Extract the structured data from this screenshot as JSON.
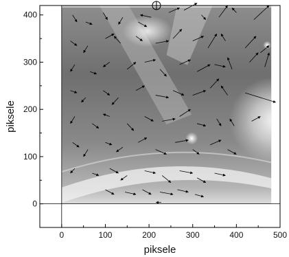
{
  "chart_data": {
    "type": "vector-field",
    "title": "",
    "xlabel": "piksele",
    "ylabel": "piksele",
    "xlim": [
      -50,
      500
    ],
    "ylim": [
      -50,
      420
    ],
    "xticks": [
      0,
      100,
      200,
      300,
      400,
      500
    ],
    "yticks": [
      0,
      100,
      200,
      300,
      400
    ],
    "grid": false,
    "legend": "none",
    "image_extent": {
      "x": [
        0,
        480
      ],
      "y": [
        0,
        420
      ]
    },
    "reference_lines": {
      "x": 0,
      "y": 0
    },
    "marker": {
      "x": 217,
      "y": 420,
      "symbol": "circle-plus"
    },
    "vectors": [
      {
        "x": 25,
        "y": 400,
        "dx": 10,
        "dy": -15
      },
      {
        "x": 55,
        "y": 385,
        "dx": 15,
        "dy": -5
      },
      {
        "x": 95,
        "y": 405,
        "dx": 10,
        "dy": -15
      },
      {
        "x": 140,
        "y": 395,
        "dx": -10,
        "dy": -15
      },
      {
        "x": 175,
        "y": 385,
        "dx": 20,
        "dy": -10
      },
      {
        "x": 205,
        "y": 395,
        "dx": -25,
        "dy": 5
      },
      {
        "x": 245,
        "y": 405,
        "dx": 25,
        "dy": 10
      },
      {
        "x": 280,
        "y": 410,
        "dx": 30,
        "dy": 15
      },
      {
        "x": 320,
        "y": 400,
        "dx": 10,
        "dy": -10
      },
      {
        "x": 360,
        "y": 395,
        "dx": 20,
        "dy": 25
      },
      {
        "x": 400,
        "y": 405,
        "dx": -10,
        "dy": 10
      },
      {
        "x": 440,
        "y": 390,
        "dx": 35,
        "dy": 30
      },
      {
        "x": 20,
        "y": 345,
        "dx": 15,
        "dy": -10
      },
      {
        "x": 60,
        "y": 335,
        "dx": -10,
        "dy": -15
      },
      {
        "x": 100,
        "y": 350,
        "dx": 20,
        "dy": 10
      },
      {
        "x": 135,
        "y": 340,
        "dx": -15,
        "dy": 15
      },
      {
        "x": 170,
        "y": 355,
        "dx": 15,
        "dy": -10
      },
      {
        "x": 215,
        "y": 340,
        "dx": 30,
        "dy": 5
      },
      {
        "x": 255,
        "y": 350,
        "dx": 20,
        "dy": 20
      },
      {
        "x": 300,
        "y": 345,
        "dx": 25,
        "dy": 10
      },
      {
        "x": 335,
        "y": 330,
        "dx": 20,
        "dy": 30
      },
      {
        "x": 375,
        "y": 345,
        "dx": -10,
        "dy": 15
      },
      {
        "x": 420,
        "y": 330,
        "dx": 25,
        "dy": 25
      },
      {
        "x": 455,
        "y": 320,
        "dx": 20,
        "dy": 15
      },
      {
        "x": 30,
        "y": 295,
        "dx": -10,
        "dy": -15
      },
      {
        "x": 65,
        "y": 280,
        "dx": 15,
        "dy": -5
      },
      {
        "x": 110,
        "y": 300,
        "dx": -15,
        "dy": -10
      },
      {
        "x": 150,
        "y": 285,
        "dx": 20,
        "dy": 15
      },
      {
        "x": 190,
        "y": 300,
        "dx": 25,
        "dy": 5
      },
      {
        "x": 225,
        "y": 285,
        "dx": 15,
        "dy": -15
      },
      {
        "x": 270,
        "y": 295,
        "dx": 25,
        "dy": 10
      },
      {
        "x": 310,
        "y": 280,
        "dx": 30,
        "dy": 15
      },
      {
        "x": 350,
        "y": 295,
        "dx": 25,
        "dy": -5
      },
      {
        "x": 390,
        "y": 285,
        "dx": -10,
        "dy": 25
      },
      {
        "x": 430,
        "y": 300,
        "dx": 20,
        "dy": 20
      },
      {
        "x": 465,
        "y": 290,
        "dx": 10,
        "dy": 30
      },
      {
        "x": 20,
        "y": 240,
        "dx": 15,
        "dy": -5
      },
      {
        "x": 55,
        "y": 225,
        "dx": -10,
        "dy": -10
      },
      {
        "x": 95,
        "y": 240,
        "dx": 15,
        "dy": -10
      },
      {
        "x": 130,
        "y": 225,
        "dx": -15,
        "dy": -15
      },
      {
        "x": 170,
        "y": 240,
        "dx": 20,
        "dy": 10
      },
      {
        "x": 215,
        "y": 230,
        "dx": 30,
        "dy": -5
      },
      {
        "x": 255,
        "y": 240,
        "dx": 25,
        "dy": -10
      },
      {
        "x": 300,
        "y": 230,
        "dx": 30,
        "dy": 10
      },
      {
        "x": 340,
        "y": 245,
        "dx": 20,
        "dy": 20
      },
      {
        "x": 380,
        "y": 230,
        "dx": -15,
        "dy": 20
      },
      {
        "x": 420,
        "y": 235,
        "dx": 70,
        "dy": -20
      },
      {
        "x": 30,
        "y": 185,
        "dx": -10,
        "dy": -15
      },
      {
        "x": 70,
        "y": 170,
        "dx": 15,
        "dy": -10
      },
      {
        "x": 110,
        "y": 185,
        "dx": -15,
        "dy": 5
      },
      {
        "x": 150,
        "y": 170,
        "dx": 15,
        "dy": -15
      },
      {
        "x": 190,
        "y": 185,
        "dx": 20,
        "dy": -10
      },
      {
        "x": 230,
        "y": 175,
        "dx": 30,
        "dy": 5
      },
      {
        "x": 270,
        "y": 185,
        "dx": 25,
        "dy": 15
      },
      {
        "x": 310,
        "y": 170,
        "dx": 20,
        "dy": -5
      },
      {
        "x": 355,
        "y": 180,
        "dx": 10,
        "dy": -15
      },
      {
        "x": 395,
        "y": 165,
        "dx": -10,
        "dy": 15
      },
      {
        "x": 435,
        "y": 175,
        "dx": 20,
        "dy": 10
      },
      {
        "x": 25,
        "y": 130,
        "dx": 15,
        "dy": -10
      },
      {
        "x": 60,
        "y": 115,
        "dx": -10,
        "dy": -15
      },
      {
        "x": 100,
        "y": 130,
        "dx": 15,
        "dy": -5
      },
      {
        "x": 140,
        "y": 120,
        "dx": -15,
        "dy": -10
      },
      {
        "x": 175,
        "y": 130,
        "dx": 20,
        "dy": 10
      },
      {
        "x": 215,
        "y": 115,
        "dx": 25,
        "dy": -10
      },
      {
        "x": 260,
        "y": 130,
        "dx": 30,
        "dy": 5
      },
      {
        "x": 300,
        "y": 115,
        "dx": 15,
        "dy": -10
      },
      {
        "x": 340,
        "y": 125,
        "dx": 25,
        "dy": 10
      },
      {
        "x": 380,
        "y": 115,
        "dx": 20,
        "dy": -10
      },
      {
        "x": 30,
        "y": 75,
        "dx": -10,
        "dy": -10
      },
      {
        "x": 70,
        "y": 65,
        "dx": 15,
        "dy": -5
      },
      {
        "x": 110,
        "y": 75,
        "dx": 20,
        "dy": -10
      },
      {
        "x": 150,
        "y": 60,
        "dx": -15,
        "dy": -10
      },
      {
        "x": 190,
        "y": 70,
        "dx": 25,
        "dy": -5
      },
      {
        "x": 230,
        "y": 60,
        "dx": 20,
        "dy": -15
      },
      {
        "x": 270,
        "y": 70,
        "dx": 30,
        "dy": -5
      },
      {
        "x": 310,
        "y": 55,
        "dx": 20,
        "dy": -10
      },
      {
        "x": 350,
        "y": 65,
        "dx": 25,
        "dy": -5
      },
      {
        "x": 100,
        "y": 30,
        "dx": 20,
        "dy": -10
      },
      {
        "x": 145,
        "y": 25,
        "dx": 25,
        "dy": -5
      },
      {
        "x": 185,
        "y": 30,
        "dx": 20,
        "dy": -10
      },
      {
        "x": 225,
        "y": 25,
        "dx": 30,
        "dy": -5
      },
      {
        "x": 265,
        "y": 30,
        "dx": 25,
        "dy": -5
      },
      {
        "x": 305,
        "y": 20,
        "dx": 20,
        "dy": -5
      },
      {
        "x": 228,
        "y": 3,
        "dx": -12,
        "dy": 0
      }
    ]
  }
}
